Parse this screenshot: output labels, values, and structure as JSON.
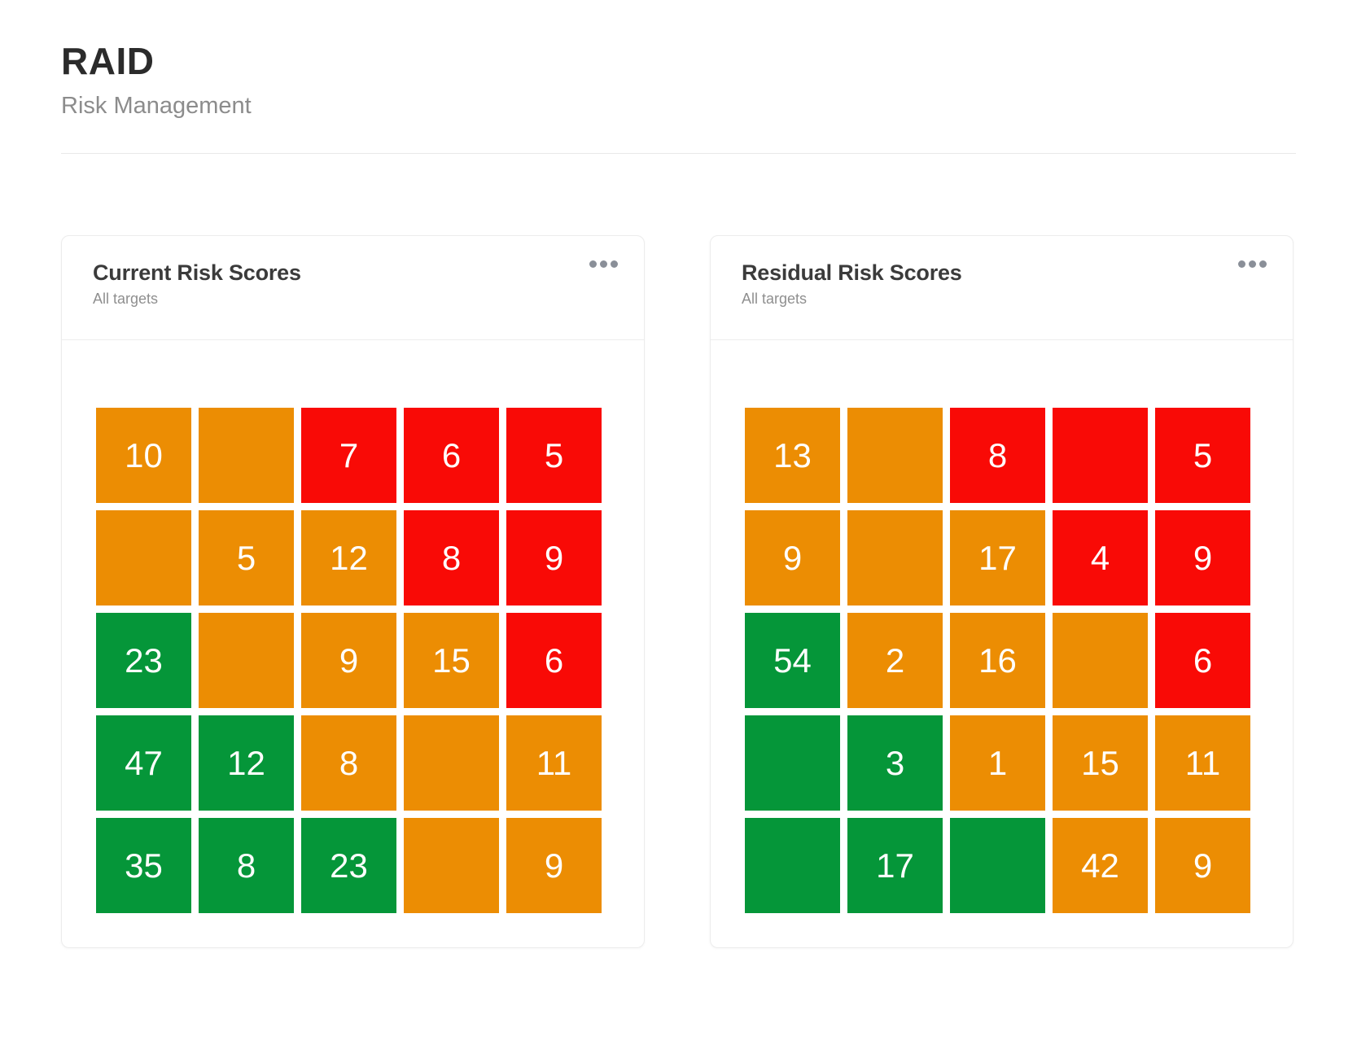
{
  "page": {
    "title": "RAID",
    "subtitle": "Risk Management"
  },
  "colors": {
    "green": "#059639",
    "orange": "#EC8D03",
    "red": "#F90A06"
  },
  "cards": [
    {
      "id": "current-risk",
      "title": "Current Risk Scores",
      "subtitle": "All targets",
      "menu_icon": "ellipsis-icon",
      "matrix": [
        [
          {
            "value": "10",
            "color": "orange"
          },
          {
            "value": "",
            "color": "orange"
          },
          {
            "value": "7",
            "color": "red"
          },
          {
            "value": "6",
            "color": "red"
          },
          {
            "value": "5",
            "color": "red"
          }
        ],
        [
          {
            "value": "",
            "color": "orange"
          },
          {
            "value": "5",
            "color": "orange"
          },
          {
            "value": "12",
            "color": "orange"
          },
          {
            "value": "8",
            "color": "red"
          },
          {
            "value": "9",
            "color": "red"
          }
        ],
        [
          {
            "value": "23",
            "color": "green"
          },
          {
            "value": "",
            "color": "orange"
          },
          {
            "value": "9",
            "color": "orange"
          },
          {
            "value": "15",
            "color": "orange"
          },
          {
            "value": "6",
            "color": "red"
          }
        ],
        [
          {
            "value": "47",
            "color": "green"
          },
          {
            "value": "12",
            "color": "green"
          },
          {
            "value": "8",
            "color": "orange"
          },
          {
            "value": "",
            "color": "orange"
          },
          {
            "value": "11",
            "color": "orange"
          }
        ],
        [
          {
            "value": "35",
            "color": "green"
          },
          {
            "value": "8",
            "color": "green"
          },
          {
            "value": "23",
            "color": "green"
          },
          {
            "value": "",
            "color": "orange"
          },
          {
            "value": "9",
            "color": "orange"
          }
        ]
      ]
    },
    {
      "id": "residual-risk",
      "title": "Residual Risk Scores",
      "subtitle": "All targets",
      "menu_icon": "ellipsis-icon",
      "matrix": [
        [
          {
            "value": "13",
            "color": "orange"
          },
          {
            "value": "",
            "color": "orange"
          },
          {
            "value": "8",
            "color": "red"
          },
          {
            "value": "",
            "color": "red"
          },
          {
            "value": "5",
            "color": "red"
          }
        ],
        [
          {
            "value": "9",
            "color": "orange"
          },
          {
            "value": "",
            "color": "orange"
          },
          {
            "value": "17",
            "color": "orange"
          },
          {
            "value": "4",
            "color": "red"
          },
          {
            "value": "9",
            "color": "red"
          }
        ],
        [
          {
            "value": "54",
            "color": "green"
          },
          {
            "value": "2",
            "color": "orange"
          },
          {
            "value": "16",
            "color": "orange"
          },
          {
            "value": "",
            "color": "orange"
          },
          {
            "value": "6",
            "color": "red"
          }
        ],
        [
          {
            "value": "",
            "color": "green"
          },
          {
            "value": "3",
            "color": "green"
          },
          {
            "value": "1",
            "color": "orange"
          },
          {
            "value": "15",
            "color": "orange"
          },
          {
            "value": "11",
            "color": "orange"
          }
        ],
        [
          {
            "value": "",
            "color": "green"
          },
          {
            "value": "17",
            "color": "green"
          },
          {
            "value": "",
            "color": "green"
          },
          {
            "value": "42",
            "color": "orange"
          },
          {
            "value": "9",
            "color": "orange"
          }
        ]
      ]
    }
  ]
}
